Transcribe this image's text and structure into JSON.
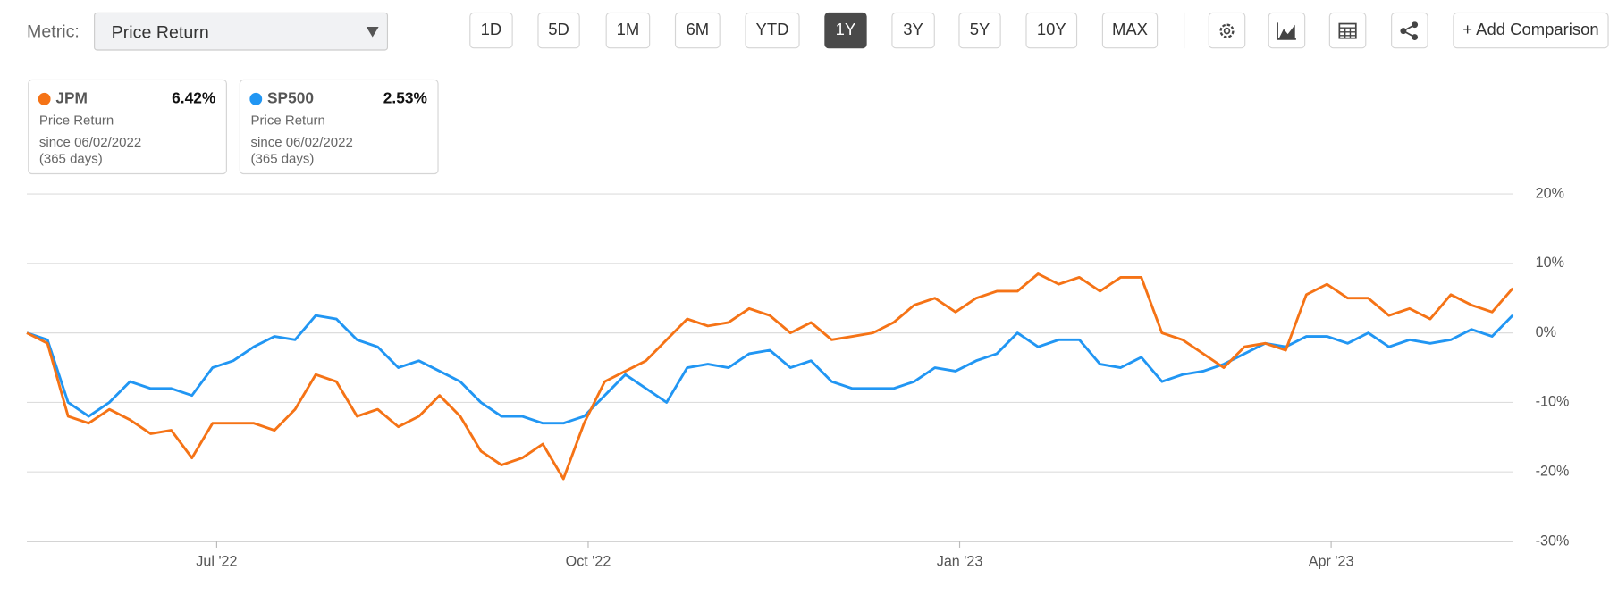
{
  "toolbar": {
    "metric_label": "Metric:",
    "metric_value": "Price Return",
    "periods": [
      "1D",
      "5D",
      "1M",
      "6M",
      "YTD",
      "1Y",
      "3Y",
      "5Y",
      "10Y",
      "MAX"
    ],
    "selected": "1Y",
    "add_comparison": "+ Add Comparison"
  },
  "legend_cards": [
    {
      "name": "JPM",
      "value": "6.42%",
      "metric": "Price Return",
      "since": "since 06/02/2022",
      "days": "(365 days)"
    },
    {
      "name": "SP500",
      "value": "2.53%",
      "metric": "Price Return",
      "since": "since 06/02/2022",
      "days": "(365 days)"
    }
  ],
  "chart_data": {
    "type": "line",
    "series": [
      {
        "name": "JPM",
        "color": "#f57316",
        "values": [
          0,
          -1.5,
          -12,
          -13,
          -11,
          -12.5,
          -14.5,
          -14,
          -18,
          -13,
          -13,
          -13,
          -14,
          -11,
          -6,
          -7,
          -12,
          -11,
          -13.5,
          -12,
          -9,
          -12,
          -17,
          -19,
          -18,
          -16,
          -21,
          -13,
          -7,
          -5.5,
          -4,
          -1,
          2,
          1,
          1.5,
          3.5,
          2.5,
          0,
          1.5,
          -1,
          -0.5,
          0,
          1.5,
          4,
          5,
          3,
          5,
          6,
          6,
          8.5,
          7,
          8,
          6,
          8,
          8,
          0,
          -1,
          -3,
          -5,
          -2,
          -1.5,
          -2.5,
          5.5,
          7,
          5,
          5,
          2.5,
          3.5,
          2,
          5.5,
          4,
          3,
          6.42
        ]
      },
      {
        "name": "SP500",
        "color": "#2196f3",
        "values": [
          0,
          -1,
          -10,
          -12,
          -10,
          -7,
          -8,
          -8,
          -9,
          -5,
          -4,
          -2,
          -0.5,
          -1,
          2.5,
          2,
          -1,
          -2,
          -5,
          -4,
          -5.5,
          -7,
          -10,
          -12,
          -12,
          -13,
          -13,
          -12,
          -9,
          -6,
          -8,
          -10,
          -5,
          -4.5,
          -5,
          -3,
          -2.5,
          -5,
          -4,
          -7,
          -8,
          -8,
          -8,
          -7,
          -5,
          -5.5,
          -4,
          -3,
          0,
          -2,
          -1,
          -1,
          -4.5,
          -5,
          -3.5,
          -7,
          -6,
          -5.5,
          -4.5,
          -3,
          -1.5,
          -2,
          -0.5,
          -0.5,
          -1.5,
          0,
          -2,
          -1,
          -1.5,
          -1,
          0.5,
          -0.5,
          2.53
        ]
      }
    ],
    "xlim": [
      0,
      72
    ],
    "xticks": [
      {
        "value": 9.2,
        "label": "Jul '22"
      },
      {
        "value": 27.2,
        "label": "Oct '22"
      },
      {
        "value": 45.2,
        "label": "Jan '23"
      },
      {
        "value": 63.2,
        "label": "Apr '23"
      }
    ],
    "ylim": [
      -30,
      20
    ],
    "yticks": [
      {
        "value": 20,
        "label": "20%"
      },
      {
        "value": 10,
        "label": "10%"
      },
      {
        "value": 0,
        "label": "0%"
      },
      {
        "value": -10,
        "label": "-10%"
      },
      {
        "value": -20,
        "label": "-20%"
      },
      {
        "value": -30,
        "label": "-30%"
      }
    ],
    "grid": true
  }
}
